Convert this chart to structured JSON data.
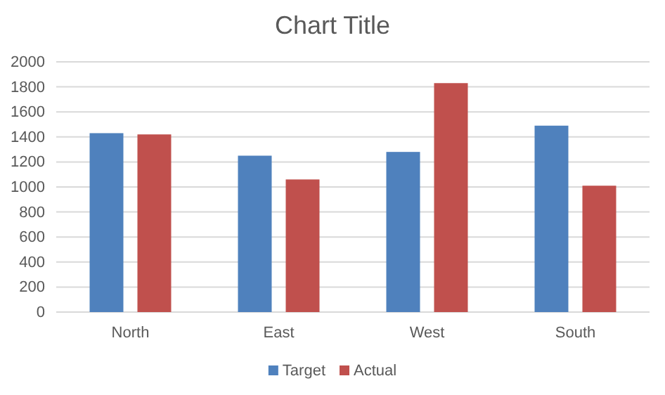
{
  "chart_data": {
    "type": "bar",
    "title": "Chart Title",
    "categories": [
      "North",
      "East",
      "West",
      "South"
    ],
    "series": [
      {
        "name": "Target",
        "color": "#4f81bd",
        "values": [
          1430,
          1250,
          1280,
          1490
        ]
      },
      {
        "name": "Actual",
        "color": "#c0504d",
        "values": [
          1420,
          1060,
          1830,
          1010
        ]
      }
    ],
    "ylim": [
      0,
      2000
    ],
    "yticks": [
      0,
      200,
      400,
      600,
      800,
      1000,
      1200,
      1400,
      1600,
      1800,
      2000
    ],
    "grid": "y",
    "legend": "bottom"
  }
}
